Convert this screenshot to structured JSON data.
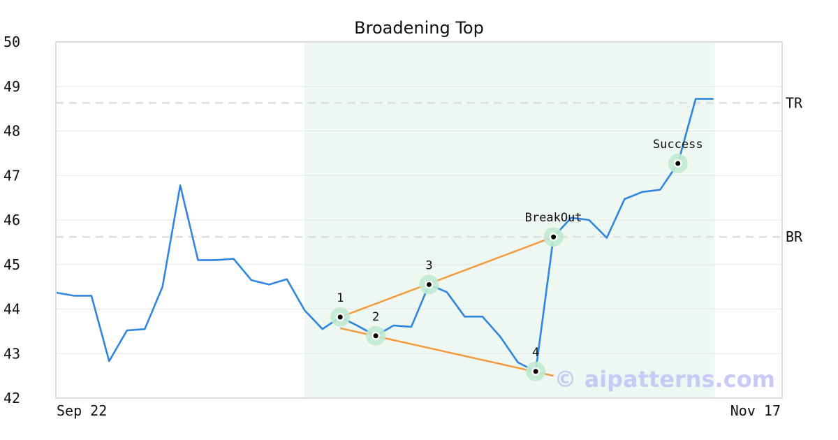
{
  "chart_data": {
    "type": "line",
    "title": "Broadening Top",
    "xlabel": "",
    "ylabel": "",
    "ylim": [
      42,
      50
    ],
    "y_ticks": [
      "42",
      "43",
      "44",
      "45",
      "46",
      "47",
      "48",
      "49",
      "50"
    ],
    "x_tick_labels": {
      "first": "Sep 22",
      "last": "Nov 17"
    },
    "grid": "horizontal",
    "colors": {
      "price": "#2f86e0",
      "trendline": "#f39a3c",
      "highlight": "#eef7f2",
      "marker_halo": "#bfe9d3",
      "level_line": "#dddddd",
      "watermark": "#c9c9f6"
    },
    "series": [
      {
        "values": [
          44.37,
          44.3,
          44.3,
          42.83,
          43.52,
          43.55,
          44.5,
          46.78,
          45.1,
          45.1,
          45.13,
          44.65,
          44.55,
          44.67,
          43.97,
          43.55,
          43.82,
          43.62,
          43.4,
          43.63,
          43.6,
          44.55,
          44.38,
          43.83,
          43.83,
          43.38,
          42.8,
          42.6,
          45.62,
          46.05,
          46.0,
          45.6,
          46.47,
          46.63,
          46.68,
          47.27,
          48.72,
          48.72
        ]
      }
    ],
    "highlight_range": {
      "start_index": 14,
      "end_index": 37
    },
    "levels": [
      {
        "label": "TR",
        "value": 48.63
      },
      {
        "label": "BR",
        "value": 45.62
      }
    ],
    "trendlines": [
      {
        "from": {
          "index": 16,
          "value": 43.82
        },
        "to": {
          "index": 28,
          "value": 45.62
        }
      },
      {
        "from": {
          "index": 16,
          "value": 43.57
        },
        "to": {
          "index": 28,
          "value": 42.5
        }
      }
    ],
    "markers": [
      {
        "label": "1",
        "index": 16,
        "value": 43.82
      },
      {
        "label": "2",
        "index": 18,
        "value": 43.4
      },
      {
        "label": "3",
        "index": 21,
        "value": 44.55
      },
      {
        "label": "4",
        "index": 27,
        "value": 42.6
      },
      {
        "label": "BreakOut",
        "index": 28,
        "value": 45.62
      },
      {
        "label": "Success",
        "index": 35,
        "value": 47.27
      }
    ],
    "watermark": "© aipatterns.com"
  }
}
